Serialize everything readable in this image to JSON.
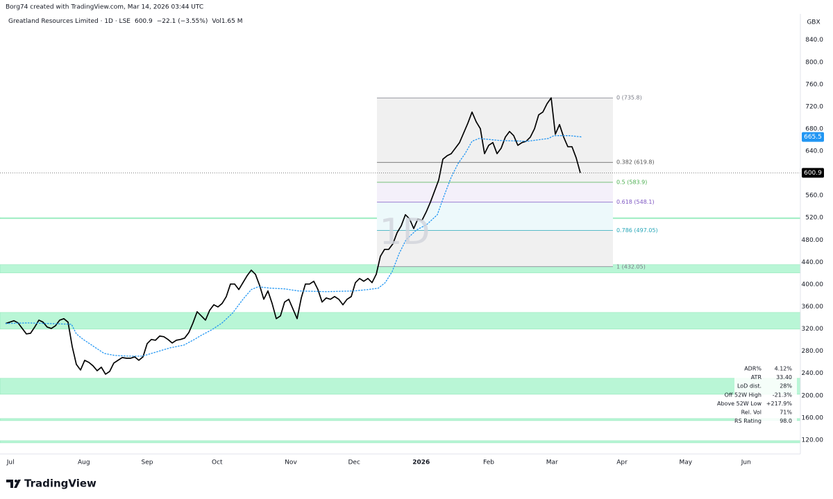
{
  "header": {
    "credit": "Borg74 created with TradingView.com, Mar 14, 2026 03:44 UTC",
    "symbol": "Greatland Resources Limited · 1D · LSE",
    "change": "−22.1 (−3.55%)",
    "volume": "Vol1.65 M",
    "currency": "GBX",
    "watermark": "1D",
    "brand": "TradingView"
  },
  "stats": [
    [
      "ADR%",
      "4.12%"
    ],
    [
      "ATR",
      "33.40"
    ],
    [
      "LoD dist.",
      "28%"
    ],
    [
      "Off 52W High",
      "-21.3%"
    ],
    [
      "Above 52W Low",
      "+217.9%"
    ],
    [
      "Rel. Vol",
      "71%"
    ],
    [
      "RS Rating",
      "98.0"
    ]
  ],
  "chart_data": {
    "type": "line",
    "grid": false,
    "xlim": [
      -1.333,
      190.833
    ],
    "ylim": [
      95,
      887
    ],
    "xticks": [
      {
        "value": 1.2,
        "label": "Jul"
      },
      {
        "value": 18.8,
        "label": "Aug"
      },
      {
        "value": 34,
        "label": "Sep"
      },
      {
        "value": 50.8,
        "label": "Oct"
      },
      {
        "value": 68.5,
        "label": "Nov"
      },
      {
        "value": 83.7,
        "label": "Dec"
      },
      {
        "value": 99.8,
        "label": "2026"
      },
      {
        "value": 116,
        "label": "Feb"
      },
      {
        "value": 131.2,
        "label": "Mar"
      },
      {
        "value": 148,
        "label": "Apr"
      },
      {
        "value": 163.3,
        "label": "May"
      },
      {
        "value": 177.8,
        "label": "Jun"
      }
    ],
    "yticks": [
      {
        "value": 120,
        "label": "120.00"
      },
      {
        "value": 160,
        "label": "160.00"
      },
      {
        "value": 200,
        "label": "200.00"
      },
      {
        "value": 240,
        "label": "240.00"
      },
      {
        "value": 280,
        "label": "280.00"
      },
      {
        "value": 320,
        "label": "320.00"
      },
      {
        "value": 360,
        "label": "360.00"
      },
      {
        "value": 400,
        "label": "400.00"
      },
      {
        "value": 440,
        "label": "440.00"
      },
      {
        "value": 480,
        "label": "480.00"
      },
      {
        "value": 520,
        "label": "520.0"
      },
      {
        "value": 560,
        "label": "560.0"
      },
      {
        "value": 640,
        "label": "640.0"
      },
      {
        "value": 680,
        "label": "680.0"
      },
      {
        "value": 720,
        "label": "720.0"
      },
      {
        "value": 760,
        "label": "760.0"
      },
      {
        "value": 800,
        "label": "800.0"
      },
      {
        "value": 840,
        "label": "840.0"
      }
    ],
    "zones": [
      [
        420.8,
        435.7
      ],
      [
        319.7,
        349.6
      ],
      [
        202.4,
        231.1
      ],
      [
        155.0,
        158.7
      ],
      [
        115.1,
        118.8
      ],
      [
        518.3,
        520.3
      ]
    ],
    "zone_color": "#b9f6d6",
    "fib": {
      "x": [
        89.17,
        145.83
      ],
      "levels": [
        {
          "value": 735.8,
          "label": "0 (735.8)",
          "color": "#787b86",
          "fill": "#f0f0f0"
        },
        {
          "value": 619.8,
          "label": "0.382 (619.8)",
          "color": "#555555",
          "fill": "#f2f2f2"
        },
        {
          "value": 583.9,
          "label": "0.5 (583.9)",
          "color": "#4caf50",
          "fill": "#f4f0fa"
        },
        {
          "value": 548.1,
          "label": "0.618 (548.1)",
          "color": "#7e57c2",
          "fill": "#edf9fb"
        },
        {
          "value": 497.05,
          "label": "0.786 (497.05)",
          "color": "#26a6b8",
          "fill": "#f0f0f0"
        },
        {
          "value": 432.05,
          "label": "1 (432.05)",
          "color": "#787b86"
        }
      ]
    },
    "series": [
      {
        "color": "#000000",
        "x": [
          0,
          1,
          2,
          3,
          4,
          5,
          6,
          7,
          8,
          9,
          10,
          11,
          12,
          13,
          14,
          15,
          16,
          17,
          18,
          19,
          20,
          21,
          22,
          23,
          24,
          25,
          26,
          27,
          28,
          29,
          30,
          31,
          32,
          33,
          34,
          35,
          36,
          37,
          38,
          39,
          40,
          41,
          42,
          43,
          44,
          45,
          46,
          47,
          48,
          49,
          50,
          51,
          52,
          53,
          54,
          55,
          56,
          57,
          58,
          59,
          60,
          61,
          62,
          63,
          64,
          65,
          66,
          67,
          68,
          69,
          70,
          71,
          72,
          73,
          74,
          75,
          76,
          77,
          78,
          79,
          80,
          81,
          82,
          83,
          84,
          85,
          86,
          87,
          88,
          89,
          90,
          91,
          92,
          93,
          94,
          95,
          96,
          97,
          98,
          99,
          100,
          101,
          102,
          103,
          104,
          105,
          106,
          107,
          108,
          109,
          110,
          111,
          112,
          113,
          114,
          115,
          116,
          117,
          118,
          119,
          120,
          121,
          122,
          123,
          124,
          125,
          126,
          127,
          128,
          129,
          130,
          131,
          132,
          133,
          134,
          135,
          136,
          137,
          138
        ],
        "values": [
          329.7,
          332.2,
          334.7,
          330.9,
          320.9,
          311.0,
          312.2,
          323.4,
          335.9,
          332.2,
          323.4,
          320.9,
          325.9,
          335.9,
          338.4,
          332.2,
          288.5,
          256.1,
          246.1,
          263.5,
          259.8,
          253.6,
          244.8,
          251.1,
          238.6,
          243.6,
          258.6,
          263.5,
          268.5,
          267.3,
          267.3,
          269.8,
          263.5,
          269.8,
          293.5,
          301.0,
          299.7,
          307.2,
          306.0,
          301.0,
          294.7,
          299.7,
          301.0,
          303.5,
          313.4,
          330.9,
          350.9,
          343.4,
          335.9,
          353.4,
          363.4,
          359.6,
          365.9,
          378.3,
          400.8,
          400.8,
          390.8,
          403.3,
          415.8,
          425.8,
          418.3,
          398.3,
          373.4,
          388.3,
          365.9,
          338.4,
          343.4,
          368.4,
          373.4,
          355.9,
          338.4,
          375.8,
          400.8,
          400.8,
          405.8,
          390.8,
          368.4,
          375.8,
          373.4,
          378.3,
          373.4,
          363.4,
          373.4,
          378.3,
          403.3,
          410.8,
          405.8,
          410.8,
          403.3,
          418.3,
          450.7,
          463.2,
          463.2,
          473.2,
          493.1,
          505.6,
          525.6,
          518.1,
          500.6,
          518.1,
          515.6,
          530.6,
          548.0,
          568.0,
          588.0,
          625.4,
          631.6,
          635.4,
          645.4,
          655.4,
          672.8,
          690.3,
          710.3,
          692.8,
          680.3,
          635.4,
          650.4,
          655.4,
          635.4,
          645.4,
          665.3,
          675.3,
          667.8,
          650.4,
          655.4,
          657.8,
          665.3,
          680.3,
          705.3,
          710.3,
          725.2,
          735.8,
          670.3,
          687.8,
          665.3,
          647.9,
          647.9,
          627.9,
          600.9
        ]
      },
      {
        "color": "#2196f3",
        "dashed": true,
        "x": [
          0,
          5.33,
          10.33,
          15.83,
          17,
          18.67,
          21.17,
          23.67,
          26.17,
          29.5,
          32.83,
          36.17,
          39.5,
          42.83,
          45.33,
          47,
          49.5,
          52,
          54.5,
          57,
          59,
          60.67,
          63.67,
          67,
          70.33,
          77,
          83.67,
          87,
          89.5,
          91.17,
          92.83,
          94.5,
          96.17,
          98.67,
          101.17,
          103.67,
          105.33,
          107,
          108.67,
          110.33,
          112,
          113.67,
          118.67,
          125.33,
          130.33,
          131.67,
          135.33,
          138.33
        ],
        "values": [
          329.7,
          330.9,
          329.7,
          328.4,
          311.0,
          301.0,
          288.5,
          276.0,
          272.3,
          271.0,
          271.0,
          278.5,
          286.0,
          291.0,
          301.0,
          308.5,
          318.4,
          330.9,
          348.4,
          373.4,
          390.8,
          395.8,
          393.3,
          392.1,
          388.3,
          387.1,
          388.3,
          390.8,
          393.3,
          403.3,
          423.3,
          455.7,
          480.7,
          498.1,
          508.1,
          525.6,
          560.5,
          593.0,
          617.9,
          635.4,
          657.8,
          662.8,
          659.1,
          657.8,
          662.8,
          667.8,
          667.8,
          665.5
        ]
      }
    ]
  }
}
